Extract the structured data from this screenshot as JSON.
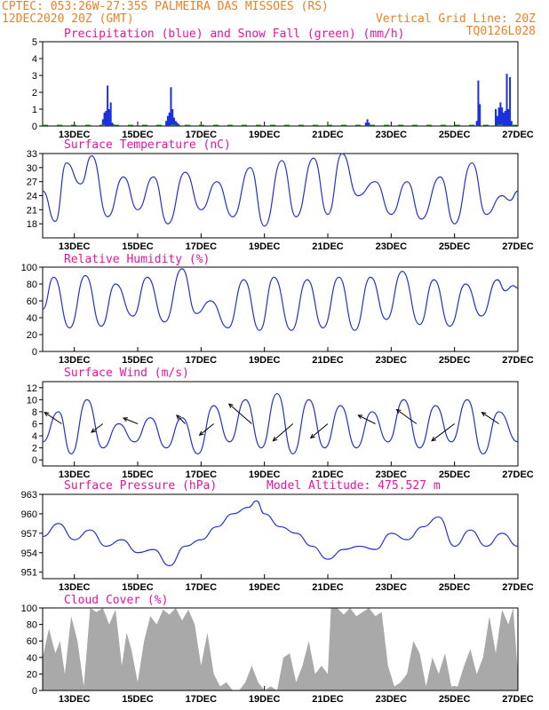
{
  "header": {
    "line1_left": "CPTEC:  053:26W-27:35S  PALMEIRA DAS MISSOES (RS)",
    "line2_left": "12DEC2020 20Z (GMT)",
    "line2_right": "Vertical Grid Line: 20Z",
    "line3_right": "TQ0126L028"
  },
  "colors": {
    "header": "#f07f20",
    "title": "#e8149c",
    "line": "#2233cc",
    "precip": "#1a2fe0",
    "snow": "#22aa22",
    "cloud": "#a9a9a9",
    "arrow": "#000000"
  },
  "chart_data": [
    {
      "type": "bar",
      "id": "precip",
      "title": "Precipitation (blue) and Snow Fall (green) (mm/h)",
      "x_ticks": [
        "13DEC",
        "15DEC",
        "17DEC",
        "19DEC",
        "21DEC",
        "23DEC",
        "25DEC",
        "27DEC"
      ],
      "x_tick_days": [
        13,
        15,
        17,
        19,
        21,
        23,
        25,
        27
      ],
      "xlim": [
        12.0,
        27.0
      ],
      "ylim": [
        0,
        5
      ],
      "y_ticks": [
        0,
        1,
        2,
        3,
        4,
        5
      ],
      "series": [
        {
          "name": "Precipitation",
          "x": [
            13.9,
            13.95,
            14.0,
            14.05,
            14.1,
            14.15,
            14.2,
            14.25,
            15.9,
            15.95,
            16.0,
            16.05,
            16.1,
            16.15,
            16.2,
            16.25,
            16.3,
            22.2,
            22.25,
            22.3,
            25.7,
            25.75,
            25.8,
            26.3,
            26.35,
            26.4,
            26.45,
            26.5,
            26.55,
            26.6,
            26.65,
            26.7,
            26.75,
            26.8
          ],
          "values": [
            0.4,
            0.8,
            0.9,
            2.4,
            1.0,
            1.4,
            0.2,
            0.1,
            0.3,
            0.6,
            0.8,
            2.3,
            1.0,
            0.5,
            0.3,
            0.2,
            0.1,
            0.2,
            0.4,
            0.2,
            0.3,
            2.7,
            1.3,
            1.0,
            0.6,
            1.1,
            1.4,
            1.1,
            0.8,
            0.9,
            3.1,
            1.0,
            2.9,
            0.3
          ]
        },
        {
          "name": "Snow Fall",
          "x": [],
          "values": []
        }
      ]
    },
    {
      "type": "line",
      "id": "temperature",
      "title": "Surface Temperature (nC)",
      "x_ticks": [
        "13DEC",
        "15DEC",
        "17DEC",
        "19DEC",
        "21DEC",
        "23DEC",
        "25DEC",
        "27DEC"
      ],
      "x_tick_days": [
        13,
        15,
        17,
        19,
        21,
        23,
        25,
        27
      ],
      "xlim": [
        12.0,
        27.0
      ],
      "ylim": [
        15,
        33
      ],
      "y_ticks": [
        18,
        21,
        24,
        27,
        30,
        33
      ],
      "x": [
        12.0,
        12.4,
        12.75,
        13.2,
        13.55,
        14.05,
        14.55,
        15.0,
        15.5,
        15.95,
        16.5,
        17.0,
        17.5,
        18.0,
        18.55,
        19.0,
        19.55,
        20.0,
        20.55,
        21.0,
        21.45,
        21.95,
        22.5,
        23.0,
        23.5,
        23.95,
        24.55,
        25.0,
        25.55,
        26.0,
        26.5,
        26.75,
        27.0
      ],
      "values": [
        25,
        18.5,
        31,
        26.5,
        32.5,
        19.5,
        28,
        21,
        28,
        18,
        29,
        21,
        27,
        19.5,
        30,
        17.5,
        31.5,
        19.5,
        32,
        20,
        33,
        24,
        27,
        20,
        27,
        19,
        28,
        18,
        31,
        20,
        24,
        23,
        25
      ]
    },
    {
      "type": "line",
      "id": "humidity",
      "title": "Relative Humidity (%)",
      "x_ticks": [
        "13DEC",
        "15DEC",
        "17DEC",
        "19DEC",
        "21DEC",
        "23DEC",
        "25DEC",
        "27DEC"
      ],
      "x_tick_days": [
        13,
        15,
        17,
        19,
        21,
        23,
        25,
        27
      ],
      "xlim": [
        12.0,
        27.0
      ],
      "ylim": [
        0,
        100
      ],
      "y_ticks": [
        0,
        20,
        40,
        60,
        80,
        100
      ],
      "x": [
        12.0,
        12.35,
        12.85,
        13.35,
        13.85,
        14.3,
        14.85,
        15.3,
        15.85,
        16.4,
        16.85,
        17.3,
        17.85,
        18.35,
        18.85,
        19.3,
        19.85,
        20.35,
        20.85,
        21.35,
        21.85,
        22.35,
        22.85,
        23.35,
        23.9,
        24.35,
        24.85,
        25.35,
        25.85,
        26.35,
        26.6,
        26.85,
        27.0
      ],
      "values": [
        50,
        88,
        28,
        90,
        30,
        80,
        42,
        88,
        35,
        98,
        45,
        60,
        28,
        85,
        25,
        88,
        25,
        85,
        28,
        88,
        25,
        88,
        38,
        95,
        32,
        85,
        30,
        80,
        42,
        85,
        72,
        78,
        75
      ]
    },
    {
      "type": "line",
      "id": "wind",
      "title": "Surface Wind (m/s)",
      "x_ticks": [
        "13DEC",
        "15DEC",
        "17DEC",
        "19DEC",
        "21DEC",
        "23DEC",
        "25DEC",
        "27DEC"
      ],
      "x_tick_days": [
        13,
        15,
        17,
        19,
        21,
        23,
        25,
        27
      ],
      "xlim": [
        12.0,
        27.0
      ],
      "ylim": [
        -1,
        13
      ],
      "y_ticks": [
        0,
        2,
        4,
        6,
        8,
        10,
        12
      ],
      "x": [
        12.0,
        12.5,
        12.9,
        13.4,
        13.9,
        14.4,
        14.9,
        15.4,
        15.9,
        16.4,
        16.9,
        17.4,
        17.9,
        18.4,
        18.9,
        19.4,
        19.9,
        20.4,
        20.9,
        21.4,
        21.9,
        22.4,
        22.9,
        23.4,
        23.9,
        24.4,
        24.9,
        25.4,
        25.9,
        26.4,
        27.0
      ],
      "values": [
        3,
        8,
        1,
        10,
        2,
        6,
        3,
        7,
        2,
        7,
        1,
        9,
        3,
        10,
        2,
        11,
        1,
        10,
        2,
        9,
        2,
        8,
        3,
        10,
        2,
        9,
        3,
        10,
        1,
        8,
        3
      ],
      "arrows": [
        {
          "x": 12.6,
          "u": -6,
          "v": 4
        },
        {
          "x": 13.9,
          "u": -4,
          "v": -3
        },
        {
          "x": 15.0,
          "u": -5,
          "v": 2
        },
        {
          "x": 16.5,
          "u": -3,
          "v": 3
        },
        {
          "x": 17.4,
          "u": -5,
          "v": -4
        },
        {
          "x": 18.6,
          "u": -8,
          "v": 7
        },
        {
          "x": 19.9,
          "u": -7,
          "v": -6
        },
        {
          "x": 21.0,
          "u": -6,
          "v": -5
        },
        {
          "x": 22.5,
          "u": -6,
          "v": 3
        },
        {
          "x": 23.8,
          "u": -7,
          "v": 5
        },
        {
          "x": 25.0,
          "u": -8,
          "v": -6
        },
        {
          "x": 26.4,
          "u": -6,
          "v": 4
        }
      ]
    },
    {
      "type": "line",
      "id": "pressure",
      "title": "Surface Pressure (hPa)",
      "subtitle": "Model Altitude: 475.527 m",
      "x_ticks": [
        "13DEC",
        "15DEC",
        "17DEC",
        "19DEC",
        "21DEC",
        "23DEC",
        "25DEC",
        "27DEC"
      ],
      "x_tick_days": [
        13,
        15,
        17,
        19,
        21,
        23,
        25,
        27
      ],
      "xlim": [
        12.0,
        27.0
      ],
      "ylim": [
        950,
        963
      ],
      "y_ticks": [
        951,
        954,
        957,
        960,
        963
      ],
      "x": [
        12.0,
        12.5,
        13.0,
        13.5,
        14.0,
        14.5,
        15.0,
        15.5,
        16.0,
        16.5,
        17.0,
        17.5,
        18.0,
        18.5,
        18.75,
        19.0,
        19.5,
        20.0,
        20.5,
        21.0,
        21.5,
        22.0,
        22.5,
        23.0,
        23.5,
        24.0,
        24.5,
        25.0,
        25.5,
        26.0,
        26.5,
        27.0
      ],
      "values": [
        956.5,
        958.5,
        956,
        957.5,
        955,
        956,
        954,
        954.5,
        952,
        955,
        956,
        958,
        960,
        961,
        962,
        960,
        958,
        957,
        955,
        953,
        954.5,
        955,
        954.5,
        957,
        956,
        958,
        959.5,
        955,
        957.5,
        955,
        957,
        955
      ]
    },
    {
      "type": "area",
      "id": "cloud",
      "title": "Cloud Cover (%)",
      "x_ticks": [
        "13DEC",
        "15DEC",
        "17DEC",
        "19DEC",
        "21DEC",
        "23DEC",
        "25DEC",
        "27DEC"
      ],
      "x_tick_days": [
        13,
        15,
        17,
        19,
        21,
        23,
        25,
        27
      ],
      "xlim": [
        12.0,
        27.0
      ],
      "ylim": [
        0,
        100
      ],
      "y_ticks": [
        0,
        20,
        40,
        60,
        80,
        100
      ],
      "x": [
        12.0,
        12.2,
        12.4,
        12.55,
        12.7,
        12.9,
        13.1,
        13.3,
        13.5,
        13.7,
        13.9,
        14.1,
        14.3,
        14.5,
        14.65,
        14.8,
        15.0,
        15.2,
        15.4,
        15.6,
        15.8,
        16.0,
        16.2,
        16.4,
        16.6,
        16.8,
        17.0,
        17.2,
        17.4,
        17.6,
        17.8,
        18.0,
        18.2,
        18.4,
        18.6,
        18.8,
        19.0,
        19.2,
        19.4,
        19.6,
        19.8,
        20.0,
        20.2,
        20.4,
        20.6,
        20.8,
        21.0,
        21.1,
        21.3,
        21.5,
        21.7,
        21.9,
        22.1,
        22.3,
        22.5,
        22.7,
        22.9,
        23.1,
        23.3,
        23.5,
        23.7,
        23.9,
        24.1,
        24.3,
        24.5,
        24.7,
        24.9,
        25.1,
        25.3,
        25.5,
        25.7,
        25.9,
        26.1,
        26.3,
        26.5,
        26.7,
        26.85,
        27.0
      ],
      "values": [
        40,
        75,
        45,
        60,
        20,
        90,
        60,
        5,
        100,
        95,
        100,
        80,
        98,
        30,
        70,
        50,
        10,
        60,
        90,
        80,
        98,
        92,
        100,
        85,
        98,
        80,
        30,
        70,
        20,
        5,
        10,
        0,
        0,
        10,
        30,
        10,
        0,
        5,
        0,
        40,
        45,
        10,
        30,
        60,
        20,
        30,
        20,
        100,
        100,
        92,
        100,
        90,
        95,
        100,
        90,
        95,
        30,
        5,
        10,
        20,
        60,
        45,
        5,
        40,
        20,
        45,
        5,
        5,
        30,
        50,
        20,
        40,
        90,
        45,
        98,
        80,
        100,
        20
      ]
    }
  ]
}
